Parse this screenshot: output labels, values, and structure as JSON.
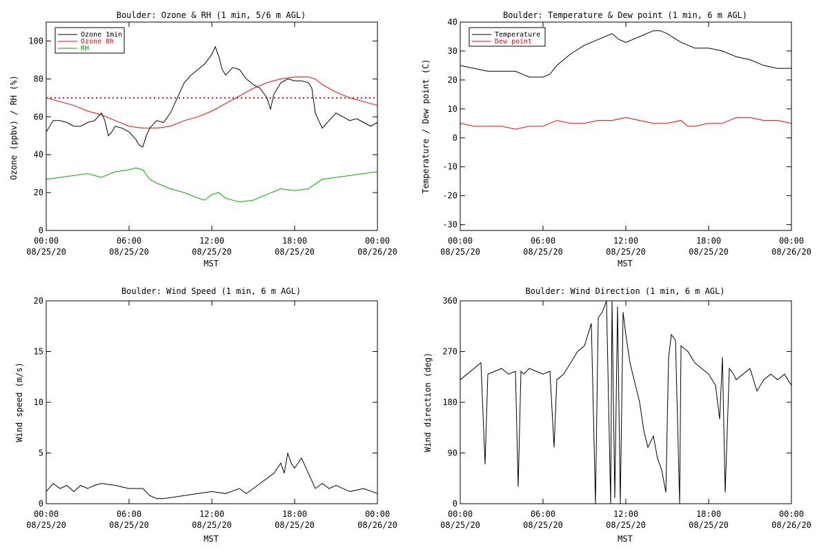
{
  "chart_data": [
    {
      "type": "line",
      "title": "Boulder: Ozone & RH (1 min, 5/6 m AGL)",
      "xlabel": "MST",
      "ylabel": "Ozone (ppbv) / RH (%)",
      "xlim": [
        0,
        24
      ],
      "ylim": [
        0,
        110
      ],
      "yticks": [
        0,
        20,
        40,
        60,
        80,
        100
      ],
      "xticks": [
        {
          "x": 0,
          "time": "00:00",
          "date": "08/25/20"
        },
        {
          "x": 6,
          "time": "06:00",
          "date": "08/25/20"
        },
        {
          "x": 12,
          "time": "12:00",
          "date": "08/25/20"
        },
        {
          "x": 18,
          "time": "18:00",
          "date": "08/25/20"
        },
        {
          "x": 24,
          "time": "00:00",
          "date": "08/26/20"
        }
      ],
      "legend": "top-left",
      "reference_lines": [
        {
          "y": 70,
          "color": "#ff0000",
          "style": "dotted"
        }
      ],
      "series": [
        {
          "name": "Ozone 1min",
          "color": "#000000",
          "x": [
            0,
            0.5,
            1,
            1.5,
            2,
            2.5,
            3,
            3.5,
            4,
            4.25,
            4.5,
            4.75,
            5,
            5.5,
            6,
            6.25,
            6.5,
            6.75,
            7,
            7.25,
            7.5,
            7.75,
            8,
            8.5,
            9,
            9.5,
            10,
            10.5,
            11,
            11.5,
            12,
            12.25,
            12.5,
            12.75,
            13,
            13.5,
            14,
            14.5,
            15,
            15.5,
            16,
            16.25,
            16.5,
            17,
            17.5,
            18,
            18.5,
            19,
            19.25,
            19.5,
            19.75,
            20,
            20.5,
            21,
            21.5,
            22,
            22.5,
            23,
            23.5,
            24
          ],
          "y": [
            52,
            58,
            58,
            57,
            55,
            55,
            57,
            58,
            62,
            58,
            50,
            52,
            55,
            54,
            52,
            50,
            48,
            45,
            44,
            50,
            54,
            56,
            58,
            57,
            62,
            70,
            78,
            82,
            85,
            88,
            93,
            97,
            92,
            85,
            82,
            86,
            85,
            80,
            77,
            75,
            70,
            64,
            72,
            78,
            80,
            79,
            79,
            78,
            75,
            62,
            58,
            54,
            58,
            62,
            60,
            58,
            59,
            57,
            55,
            57
          ]
        },
        {
          "name": "Ozone 8h",
          "color": "#ff0000",
          "x": [
            0,
            1,
            2,
            3,
            4,
            5,
            6,
            7,
            8,
            9,
            10,
            11,
            12,
            13,
            14,
            15,
            16,
            17,
            18,
            19,
            19.5,
            20,
            21,
            22,
            23,
            24
          ],
          "y": [
            70,
            68,
            66,
            63,
            61,
            58,
            55,
            54,
            54,
            55,
            58,
            60,
            63,
            67,
            71,
            75,
            78,
            80,
            81,
            81,
            80,
            77,
            73,
            70,
            68,
            66
          ]
        },
        {
          "name": "RH",
          "color": "#00aa00",
          "x": [
            0,
            1,
            2,
            3,
            4,
            5,
            6,
            6.5,
            7,
            7.5,
            8,
            9,
            10,
            11,
            11.5,
            12,
            12.5,
            13,
            14,
            15,
            16,
            17,
            18,
            19,
            20,
            21,
            22,
            23,
            24
          ],
          "y": [
            27,
            28,
            29,
            30,
            28,
            31,
            32,
            33,
            32,
            27,
            25,
            22,
            20,
            17,
            16,
            19,
            20,
            17,
            15,
            16,
            19,
            22,
            21,
            22,
            27,
            28,
            29,
            30,
            31
          ]
        }
      ]
    },
    {
      "type": "line",
      "title": "Boulder: Temperature & Dew point (1 min, 6 m AGL)",
      "xlabel": "MST",
      "ylabel": "Temperature / Dew point (C)",
      "xlim": [
        0,
        24
      ],
      "ylim": [
        -32,
        40
      ],
      "yticks": [
        -30,
        -20,
        -10,
        0,
        10,
        20,
        30,
        40
      ],
      "xticks": [
        {
          "x": 0,
          "time": "00:00",
          "date": "08/25/20"
        },
        {
          "x": 6,
          "time": "06:00",
          "date": "08/25/20"
        },
        {
          "x": 12,
          "time": "12:00",
          "date": "08/25/20"
        },
        {
          "x": 18,
          "time": "18:00",
          "date": "08/25/20"
        },
        {
          "x": 24,
          "time": "00:00",
          "date": "08/26/20"
        }
      ],
      "legend": "top-left",
      "series": [
        {
          "name": "Temperature",
          "color": "#000000",
          "x": [
            0,
            1,
            2,
            3,
            4,
            5,
            5.5,
            6,
            6.5,
            7,
            8,
            9,
            10,
            11,
            11.5,
            12,
            13,
            14,
            14.5,
            15,
            16,
            17,
            18,
            19,
            20,
            21,
            22,
            23,
            24
          ],
          "y": [
            25,
            24,
            23,
            23,
            23,
            21,
            21,
            21,
            22,
            25,
            29,
            32,
            34,
            36,
            34,
            33,
            35,
            37,
            37,
            36,
            33,
            31,
            31,
            30,
            28,
            27,
            25,
            24,
            24
          ]
        },
        {
          "name": "Dew point",
          "color": "#ff0000",
          "x": [
            0,
            1,
            2,
            3,
            4,
            5,
            6,
            7,
            8,
            9,
            10,
            11,
            12,
            13,
            14,
            15,
            16,
            16.5,
            17,
            18,
            19,
            20,
            21,
            22,
            23,
            24
          ],
          "y": [
            5,
            4,
            4,
            4,
            3,
            4,
            4,
            6,
            5,
            5,
            6,
            6,
            7,
            6,
            5,
            5,
            6,
            4,
            4,
            5,
            5,
            7,
            7,
            6,
            6,
            5
          ]
        }
      ]
    },
    {
      "type": "line",
      "title": "Boulder: Wind Speed (1 min, 6 m AGL)",
      "xlabel": "MST",
      "ylabel": "Wind speed (m/s)",
      "xlim": [
        0,
        24
      ],
      "ylim": [
        0,
        20
      ],
      "yticks": [
        0,
        5,
        10,
        15,
        20
      ],
      "xticks": [
        {
          "x": 0,
          "time": "00:00",
          "date": "08/25/20"
        },
        {
          "x": 6,
          "time": "06:00",
          "date": "08/25/20"
        },
        {
          "x": 12,
          "time": "12:00",
          "date": "08/25/20"
        },
        {
          "x": 18,
          "time": "18:00",
          "date": "08/25/20"
        },
        {
          "x": 24,
          "time": "00:00",
          "date": "08/26/20"
        }
      ],
      "series": [
        {
          "name": "",
          "color": "#000000",
          "x": [
            0,
            0.5,
            1,
            1.5,
            2,
            2.5,
            3,
            3.5,
            4,
            5,
            6,
            7,
            7.5,
            8,
            8.5,
            9,
            10,
            11,
            12,
            13,
            14,
            14.5,
            15,
            15.5,
            16,
            16.5,
            17,
            17.25,
            17.5,
            17.75,
            18,
            18.5,
            19,
            19.5,
            20,
            20.5,
            21,
            22,
            23,
            24
          ],
          "y": [
            1.2,
            2.0,
            1.5,
            1.8,
            1.2,
            1.8,
            1.5,
            1.8,
            2.0,
            1.8,
            1.5,
            1.5,
            0.8,
            0.5,
            0.5,
            0.6,
            0.8,
            1.0,
            1.2,
            1.0,
            1.5,
            1.0,
            1.5,
            2.0,
            2.5,
            3.0,
            4.0,
            3.0,
            5.0,
            4.0,
            3.5,
            4.5,
            3.0,
            1.5,
            2.0,
            1.5,
            1.8,
            1.2,
            1.5,
            1.0
          ]
        }
      ]
    },
    {
      "type": "line",
      "title": "Boulder: Wind Direction (1 min, 6 m AGL)",
      "xlabel": "MST",
      "ylabel": "Wind direction (deg)",
      "xlim": [
        0,
        24
      ],
      "ylim": [
        0,
        360
      ],
      "yticks": [
        0,
        90,
        180,
        270,
        360
      ],
      "xticks": [
        {
          "x": 0,
          "time": "00:00",
          "date": "08/25/20"
        },
        {
          "x": 6,
          "time": "06:00",
          "date": "08/25/20"
        },
        {
          "x": 12,
          "time": "12:00",
          "date": "08/25/20"
        },
        {
          "x": 18,
          "time": "18:00",
          "date": "08/25/20"
        },
        {
          "x": 24,
          "time": "00:00",
          "date": "08/26/20"
        }
      ],
      "series": [
        {
          "name": "",
          "color": "#000000",
          "x": [
            0,
            0.5,
            1,
            1.5,
            1.8,
            2,
            2.5,
            3,
            3.5,
            4,
            4.2,
            4.4,
            4.6,
            5,
            5.5,
            6,
            6.5,
            6.8,
            7,
            7.5,
            8,
            8.5,
            9,
            9.5,
            9.8,
            10,
            10.3,
            10.6,
            10.9,
            11,
            11.2,
            11.4,
            11.6,
            11.8,
            12,
            12.3,
            12.6,
            13,
            13.3,
            13.6,
            14,
            14.3,
            14.6,
            14.9,
            15.1,
            15.3,
            15.6,
            15.9,
            16,
            16.5,
            17,
            17.5,
            18,
            18.5,
            18.8,
            19,
            19.2,
            19.5,
            19.8,
            20,
            20.5,
            21,
            21.5,
            22,
            22.5,
            23,
            23.5,
            24
          ],
          "y": [
            220,
            230,
            240,
            250,
            70,
            230,
            235,
            240,
            230,
            235,
            30,
            235,
            230,
            240,
            235,
            230,
            235,
            100,
            220,
            230,
            250,
            270,
            280,
            320,
            0,
            330,
            340,
            360,
            0,
            360,
            10,
            350,
            0,
            340,
            300,
            250,
            220,
            180,
            130,
            100,
            120,
            80,
            60,
            20,
            260,
            300,
            290,
            0,
            280,
            270,
            250,
            240,
            230,
            210,
            150,
            260,
            20,
            240,
            230,
            220,
            230,
            240,
            200,
            220,
            230,
            220,
            230,
            210
          ]
        }
      ]
    }
  ]
}
